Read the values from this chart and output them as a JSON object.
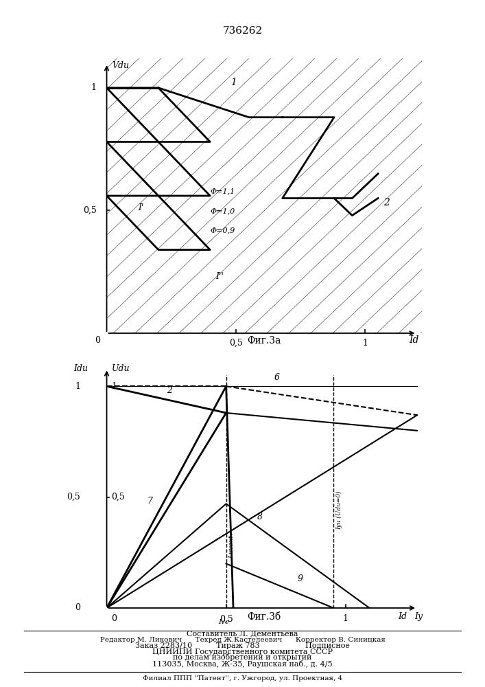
{
  "title": "736262",
  "fig3a_caption": "Фиг.3а",
  "fig3b_caption": "Фиг.3б",
  "phi_labels": [
    "Φ=1,1",
    "Φ=1,0",
    "Φ=0,9"
  ],
  "label_I_prime": "I'",
  "label_I_dprime": "I''",
  "bottom_line1": "Составитель Л. Дементьева",
  "bottom_line2": "Редактор М. Ликович      Техред Ж.Кастелеевич      Корректор В. Синицкая",
  "bottom_line3": "Заказ 2283/10          Тираж 783                   Подписное",
  "bottom_line4": "ЦНИИПИ Государственного комитета СССР",
  "bottom_line5": "по делам изобретений и открытий",
  "bottom_line6": "113035, Москва, Ж-35, Раушская наб., д. 4/5",
  "bottom_line7": "Филиал ППП ''Патент'', г. Ужгород, ул. Проектная, 4"
}
